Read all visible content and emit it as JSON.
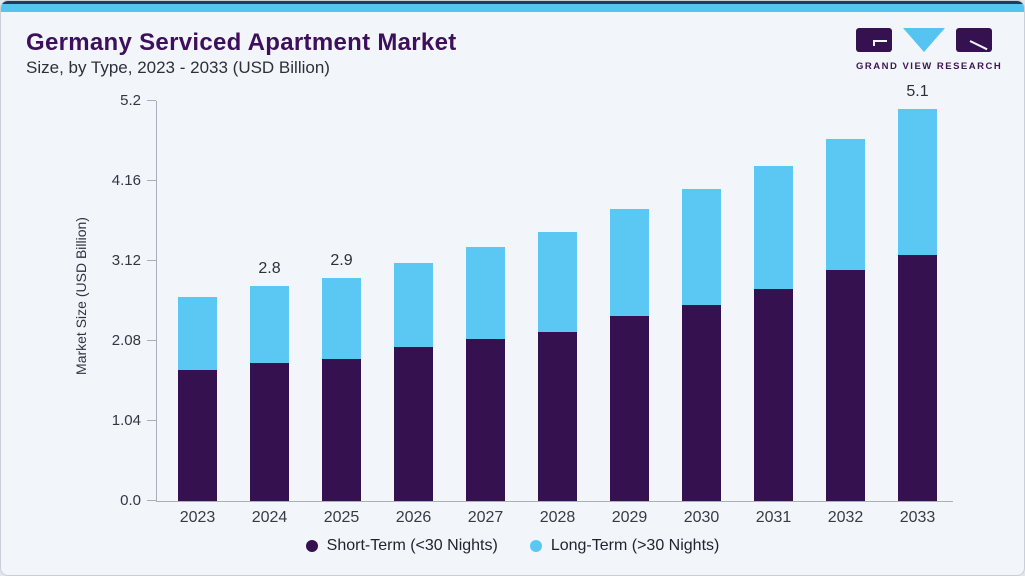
{
  "header": {
    "title": "Germany Serviced Apartment Market",
    "subtitle": "Size, by Type, 2023 - 2033 (USD Billion)"
  },
  "logo": {
    "text": "GRAND VIEW RESEARCH"
  },
  "colors": {
    "brand_purple": "#361150",
    "brand_blue": "#55c4f0",
    "series_short_term": "#361150",
    "series_long_term": "#5bc8f3",
    "title_purple": "#3d0f5c",
    "top_edge_navy": "#24395e",
    "card_background": "#f2f6fa",
    "axis_gray": "#a9afba"
  },
  "chart_data": {
    "type": "bar",
    "stacked": true,
    "title": "Germany Serviced Apartment Market Size, by Type, 2023 - 2033 (USD Billion)",
    "ylabel": "Market Size (USD Billion)",
    "xlabel": "",
    "categories": [
      "2023",
      "2024",
      "2025",
      "2026",
      "2027",
      "2028",
      "2029",
      "2030",
      "2031",
      "2032",
      "2033"
    ],
    "series": [
      {
        "name": "Short-Term (<30 Nights)",
        "color": "#361150",
        "values": [
          1.7,
          1.8,
          1.85,
          2.0,
          2.1,
          2.2,
          2.4,
          2.55,
          2.75,
          3.0,
          3.2
        ]
      },
      {
        "name": "Long-Term (>30 Nights)",
        "color": "#5bc8f3",
        "values": [
          0.95,
          1.0,
          1.05,
          1.1,
          1.2,
          1.3,
          1.4,
          1.5,
          1.6,
          1.7,
          1.9
        ]
      }
    ],
    "bar_total_labels": [
      "",
      "2.8",
      "2.9",
      "",
      "",
      "",
      "",
      "",
      "",
      "",
      "5.1"
    ],
    "yticks": [
      0.0,
      1.04,
      2.08,
      3.12,
      4.16,
      5.2
    ],
    "ytick_labels": [
      "0.0",
      "1.04",
      "2.08",
      "3.12",
      "4.16",
      "5.2"
    ],
    "ylim": [
      0,
      5.2
    ],
    "grid": false,
    "legend_position": "bottom"
  }
}
